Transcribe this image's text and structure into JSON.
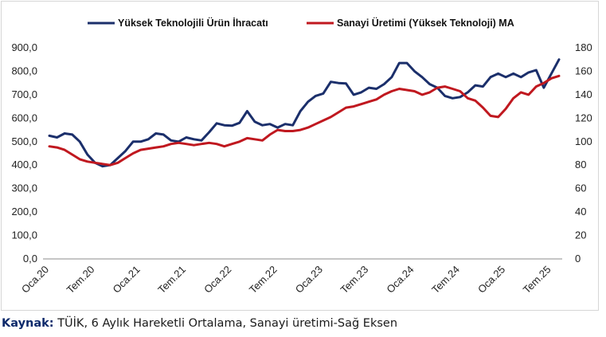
{
  "chart_data": {
    "type": "line",
    "x": [
      "Oca.20",
      "Şub.20",
      "Mar.20",
      "Nis.20",
      "May.20",
      "Haz.20",
      "Tem.20",
      "Ağu.20",
      "Eyl.20",
      "Eki.20",
      "Kas.20",
      "Ara.20",
      "Oca.21",
      "Şub.21",
      "Mar.21",
      "Nis.21",
      "May.21",
      "Haz.21",
      "Tem.21",
      "Ağu.21",
      "Eyl.21",
      "Eki.21",
      "Kas.21",
      "Ara.21",
      "Oca.22",
      "Şub.22",
      "Mar.22",
      "Nis.22",
      "May.22",
      "Haz.22",
      "Tem.22",
      "Ağu.22",
      "Eyl.22",
      "Eki.22",
      "Kas.22",
      "Ara.22",
      "Oca.23",
      "Şub.23",
      "Mar.23",
      "Nis.23",
      "May.23",
      "Haz.23",
      "Tem.23",
      "Ağu.23",
      "Eyl.23",
      "Eki.23",
      "Kas.23",
      "Ara.23",
      "Oca.24",
      "Şub.24",
      "Mar.24",
      "Nis.24",
      "May.24",
      "Haz.24",
      "Tem.24",
      "Ağu.24",
      "Eyl.24",
      "Eki.24",
      "Kas.24",
      "Ara.24",
      "Oca.25",
      "Şub.25",
      "Mar.25",
      "Nis.25",
      "May.25",
      "Haz.25",
      "Tem.25",
      "Ağu.25"
    ],
    "x_tick_labels": [
      "Oca.20",
      "Tem.20",
      "Oca.21",
      "Tem.21",
      "Oca.22",
      "Tem.22",
      "Oca.23",
      "Tem.23",
      "Oca.24",
      "Tem.24",
      "Oca.25",
      "Tem.25"
    ],
    "series": [
      {
        "name": "Yüksek Teknolojili Ürün İhracatı",
        "axis": "left",
        "color": "#1b2f6b",
        "values": [
          525,
          518,
          535,
          530,
          500,
          445,
          410,
          395,
          400,
          430,
          460,
          500,
          500,
          510,
          535,
          530,
          505,
          500,
          518,
          510,
          505,
          540,
          578,
          570,
          568,
          580,
          630,
          585,
          570,
          575,
          560,
          575,
          570,
          630,
          670,
          695,
          705,
          755,
          750,
          748,
          700,
          710,
          730,
          725,
          745,
          775,
          835,
          835,
          800,
          775,
          745,
          730,
          695,
          685,
          690,
          710,
          740,
          735,
          775,
          790,
          775,
          790,
          775,
          795,
          805,
          730,
          790,
          850
        ]
      },
      {
        "name": "Sanayi Üretimi (Yüksek Teknoloji) MA",
        "axis": "right",
        "color": "#c0181f",
        "values": [
          96,
          95,
          93,
          89,
          85,
          83,
          82,
          81,
          80,
          82,
          86,
          90,
          93,
          94,
          95,
          96,
          98,
          99,
          98,
          97,
          98,
          99,
          98,
          96,
          98,
          100,
          103,
          102,
          101,
          106,
          110,
          109,
          109,
          110,
          112,
          115,
          118,
          121,
          125,
          129,
          130,
          132,
          134,
          136,
          140,
          143,
          145,
          144,
          143,
          140,
          142,
          146,
          147,
          145,
          143,
          137,
          135,
          129,
          122,
          121,
          128,
          137,
          142,
          140,
          147,
          150,
          154,
          156
        ]
      }
    ],
    "ylim_left": [
      0,
      900
    ],
    "ylim_right": [
      0,
      180
    ],
    "yticks_left": [
      "0,0",
      "100,0",
      "200,0",
      "300,0",
      "400,0",
      "500,0",
      "600,0",
      "700,0",
      "800,0",
      "900,0"
    ],
    "yticks_right": [
      "0",
      "20",
      "40",
      "60",
      "80",
      "100",
      "120",
      "140",
      "160",
      "180"
    ],
    "legend_position": "top",
    "grid": false
  },
  "source": {
    "label": "Kaynak:",
    "text": "TÜİK, 6 Aylık Hareketli Ortalama, Sanayi üretimi-Sağ Eksen"
  }
}
